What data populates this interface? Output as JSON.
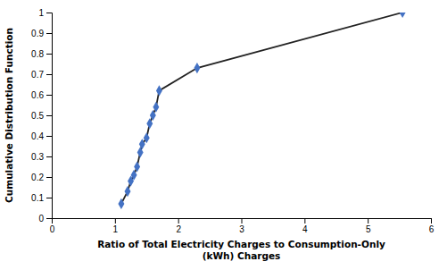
{
  "chart_data": {
    "type": "line",
    "xlabel": "Ratio of Total Electricity Charges to Consumption-Only\n(kWh) Charges",
    "ylabel": "Cumulative Distribution Function",
    "x": [
      1.1,
      1.2,
      1.25,
      1.3,
      1.35,
      1.4,
      1.43,
      1.5,
      1.55,
      1.6,
      1.65,
      1.7,
      2.3,
      5.55
    ],
    "values": [
      0.07,
      0.13,
      0.18,
      0.21,
      0.25,
      0.32,
      0.36,
      0.39,
      0.46,
      0.5,
      0.54,
      0.62,
      0.73,
      1.0
    ],
    "color": "#4472C4",
    "marker": "diamond",
    "xlim": [
      0,
      6
    ],
    "ylim": [
      0,
      1.0
    ],
    "xticks": [
      0,
      1,
      2,
      3,
      4,
      5,
      6
    ],
    "yticks": [
      0,
      0.1,
      0.2,
      0.3,
      0.4,
      0.5,
      0.6,
      0.7,
      0.8,
      0.9,
      1
    ],
    "grid": false
  }
}
